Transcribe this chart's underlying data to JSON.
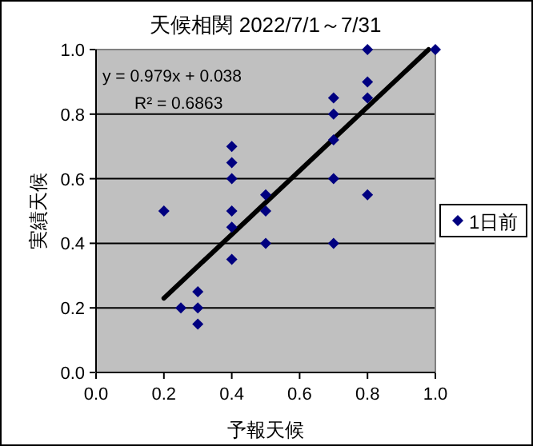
{
  "chart_data": {
    "type": "scatter",
    "title": "天候相関 2022/7/1～7/31",
    "xlabel": "予報天候",
    "ylabel": "実績天候",
    "annotations": [
      "y = 0.979x + 0.038",
      "R² = 0.6863"
    ],
    "series": [
      {
        "name": "1日前",
        "color": "#000080",
        "x": [
          1.0,
          0.8,
          0.8,
          0.8,
          0.7,
          0.7,
          0.7,
          0.4,
          0.4,
          0.4,
          0.7,
          0.8,
          0.5,
          0.2,
          0.4,
          0.5,
          0.4,
          0.4,
          0.7,
          0.5,
          0.3,
          0.25,
          0.3,
          0.3
        ],
        "values": [
          1.0,
          1.0,
          0.9,
          0.85,
          0.85,
          0.8,
          0.72,
          0.7,
          0.65,
          0.6,
          0.6,
          0.55,
          0.55,
          0.5,
          0.5,
          0.5,
          0.45,
          0.35,
          0.4,
          0.4,
          0.25,
          0.2,
          0.2,
          0.15
        ]
      },
      {
        "type": "line",
        "marker": "none",
        "color": "#000000",
        "x": [
          0.2,
          0.98
        ],
        "values": [
          0.23,
          1.0
        ]
      }
    ],
    "marker": "diamond",
    "xlim": [
      0,
      1
    ],
    "ylim": [
      0,
      1
    ],
    "xticks": [
      {
        "value": 0,
        "label": "0.0"
      },
      {
        "value": 0.2,
        "label": "0.2"
      },
      {
        "value": 0.4,
        "label": "0.4"
      },
      {
        "value": 0.6,
        "label": "0.6"
      },
      {
        "value": 0.8,
        "label": "0.8"
      },
      {
        "value": 1,
        "label": "1.0"
      }
    ],
    "yticks": [
      {
        "value": 0,
        "label": "0.0"
      },
      {
        "value": 0.2,
        "label": "0.2"
      },
      {
        "value": 0.4,
        "label": "0.4"
      },
      {
        "value": 0.6,
        "label": "0.6"
      },
      {
        "value": 0.8,
        "label": "0.8"
      },
      {
        "value": 1,
        "label": "1.0"
      }
    ],
    "grid": "y",
    "legend": "right"
  }
}
